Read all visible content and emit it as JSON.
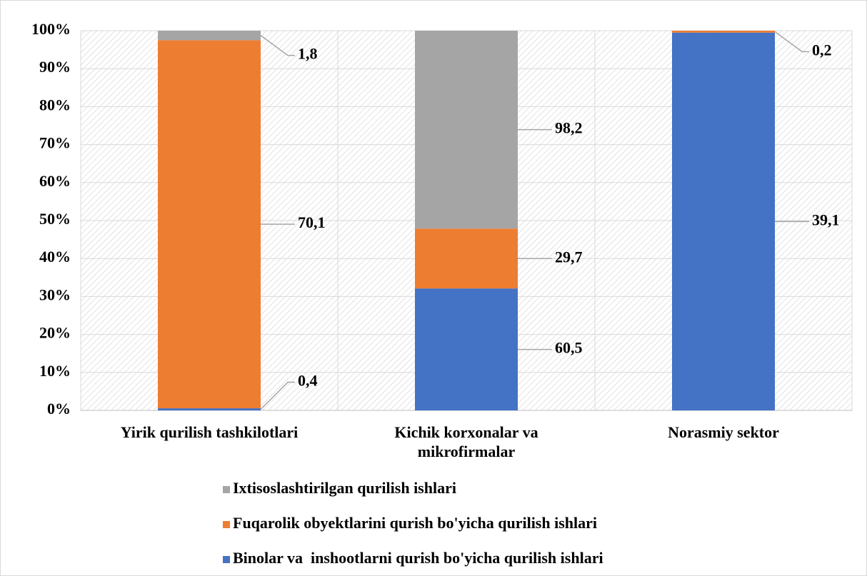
{
  "chart_data": {
    "type": "stacked_bar_100",
    "categories": [
      "Yirik qurilish tashkilotlari",
      "Kichik korxonalar va mikrofirmalar",
      "Norasmiy sektor"
    ],
    "series": [
      {
        "name": "Binolar va  inshootlarni qurish bo'yicha qurilish ishlari",
        "color": "#4472c4",
        "values": [
          0.4,
          60.5,
          39.1
        ],
        "value_labels": [
          "0,4",
          "60,5",
          "39,1"
        ]
      },
      {
        "name": "Fuqarolik obyektlarini qurish bo'yicha qurilish ishlari",
        "color": "#ed7d31",
        "values": [
          70.1,
          29.7,
          0.2
        ],
        "value_labels": [
          "70,1",
          "29,7",
          "0,2"
        ]
      },
      {
        "name": "Ixtisoslashtirilgan qurilish ishlari",
        "color": "#a5a5a5",
        "values": [
          1.8,
          98.2,
          null
        ],
        "value_labels": [
          "1,8",
          "98,2",
          null
        ]
      }
    ],
    "ylim": [
      0,
      100
    ],
    "yticks": [
      {
        "value": 0,
        "label": "0%"
      },
      {
        "value": 10,
        "label": "10%"
      },
      {
        "value": 20,
        "label": "20%"
      },
      {
        "value": 30,
        "label": "30%"
      },
      {
        "value": 40,
        "label": "40%"
      },
      {
        "value": 50,
        "label": "50%"
      },
      {
        "value": 60,
        "label": "60%"
      },
      {
        "value": 70,
        "label": "70%"
      },
      {
        "value": 80,
        "label": "80%"
      },
      {
        "value": 90,
        "label": "90%"
      },
      {
        "value": 100,
        "label": "100%"
      }
    ],
    "grid": true,
    "legend": "bottom"
  }
}
